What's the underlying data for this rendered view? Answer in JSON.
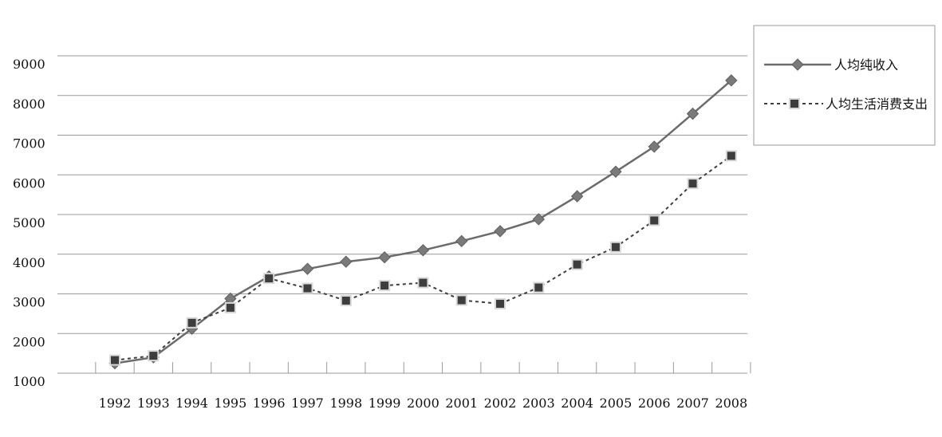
{
  "chart_data": {
    "type": "line",
    "title": "",
    "xlabel": "",
    "ylabel": "",
    "categories": [
      "1992",
      "1993",
      "1994",
      "1995",
      "1996",
      "1997",
      "1998",
      "1999",
      "2000",
      "2001",
      "2002",
      "2003",
      "2004",
      "2005",
      "2006",
      "2007",
      "2008"
    ],
    "y_ticks": [
      "1000",
      "2000",
      "3000",
      "4000",
      "5000",
      "6000",
      "7000",
      "8000",
      "9000"
    ],
    "ylim": [
      1000,
      9000
    ],
    "grid": true,
    "legend_position": "top-right",
    "series": [
      {
        "name": "人均纯收入",
        "marker": "diamond",
        "line": "solid",
        "color": "#6b6b6b",
        "values": [
          1250,
          1400,
          2120,
          2880,
          3440,
          3630,
          3810,
          3920,
          4100,
          4330,
          4580,
          4880,
          5460,
          6080,
          6710,
          7540,
          8380
        ]
      },
      {
        "name": "人均生活消费支出",
        "marker": "square",
        "line": "dotted",
        "color": "#3d3d3d",
        "values": [
          1330,
          1440,
          2270,
          2650,
          3390,
          3140,
          2830,
          3210,
          3280,
          2840,
          2750,
          3160,
          3740,
          4180,
          4850,
          5780,
          6480
        ]
      }
    ]
  }
}
